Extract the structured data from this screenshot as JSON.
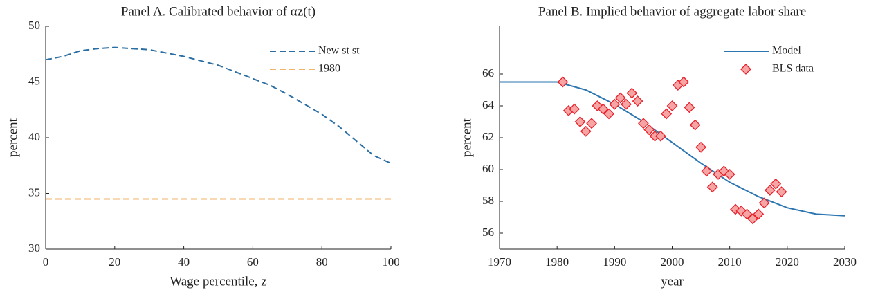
{
  "chart_data": [
    {
      "type": "line",
      "title": "Panel A. Calibrated behavior of αz(t)",
      "xlabel": "Wage percentile, z",
      "ylabel": "percent",
      "xlim": [
        0,
        100
      ],
      "xticks": [
        0,
        20,
        40,
        60,
        80,
        100
      ],
      "ylim": [
        30,
        50
      ],
      "yticks": [
        30,
        35,
        40,
        45,
        50
      ],
      "legend": "upper right",
      "series": [
        {
          "name": "New st st",
          "color": "#2b6ea3",
          "line_style": "dashed",
          "x": [
            0,
            5,
            10,
            15,
            20,
            25,
            30,
            35,
            40,
            45,
            50,
            55,
            60,
            65,
            70,
            75,
            80,
            85,
            90,
            95,
            100
          ],
          "values": [
            47.0,
            47.3,
            47.8,
            48.0,
            48.1,
            48.0,
            47.9,
            47.6,
            47.3,
            46.9,
            46.5,
            45.9,
            45.3,
            44.7,
            43.9,
            43.0,
            42.1,
            41.0,
            39.7,
            38.4,
            37.7
          ]
        },
        {
          "name": "1980",
          "color": "#f2b36b",
          "line_style": "dashed",
          "x": [
            0,
            100
          ],
          "values": [
            34.5,
            34.5
          ]
        }
      ]
    },
    {
      "type": "line",
      "title": "Panel B. Implied behavior of aggregate labor share",
      "xlabel": "year",
      "ylabel": "percent",
      "xlim": [
        1970,
        2030
      ],
      "xticks": [
        1970,
        1980,
        1990,
        2000,
        2010,
        2020,
        2030
      ],
      "ylim": [
        55,
        69
      ],
      "yticks": [
        56,
        58,
        60,
        62,
        64,
        66
      ],
      "legend": "upper right",
      "series": [
        {
          "name": "Model",
          "color": "#2b75b0",
          "line_style": "solid",
          "x": [
            1970,
            1975,
            1980,
            1985,
            1990,
            1995,
            2000,
            2005,
            2010,
            2015,
            2020,
            2025,
            2030
          ],
          "values": [
            65.5,
            65.5,
            65.5,
            65.0,
            64.1,
            63.0,
            61.7,
            60.4,
            59.2,
            58.3,
            57.6,
            57.2,
            57.1
          ]
        },
        {
          "name": "BLS data",
          "color": "#e8202a",
          "line_style": "none",
          "marker": "diamond",
          "x": [
            1981,
            1982,
            1983,
            1984,
            1985,
            1986,
            1987,
            1988,
            1989,
            1990,
            1991,
            1992,
            1993,
            1994,
            1995,
            1996,
            1997,
            1998,
            1999,
            2000,
            2001,
            2002,
            2003,
            2004,
            2005,
            2006,
            2007,
            2008,
            2009,
            2010,
            2011,
            2012,
            2013,
            2014,
            2015,
            2016,
            2017,
            2018,
            2019
          ],
          "values": [
            65.5,
            63.7,
            63.8,
            63.0,
            62.4,
            62.9,
            64.0,
            63.8,
            63.5,
            64.1,
            64.5,
            64.1,
            64.8,
            64.3,
            62.9,
            62.5,
            62.1,
            62.1,
            63.5,
            64.0,
            65.3,
            65.5,
            63.9,
            62.8,
            61.4,
            59.9,
            58.9,
            59.7,
            59.9,
            59.7,
            57.5,
            57.4,
            57.2,
            56.9,
            57.2,
            57.9,
            58.7,
            59.1,
            58.6
          ]
        }
      ]
    }
  ]
}
